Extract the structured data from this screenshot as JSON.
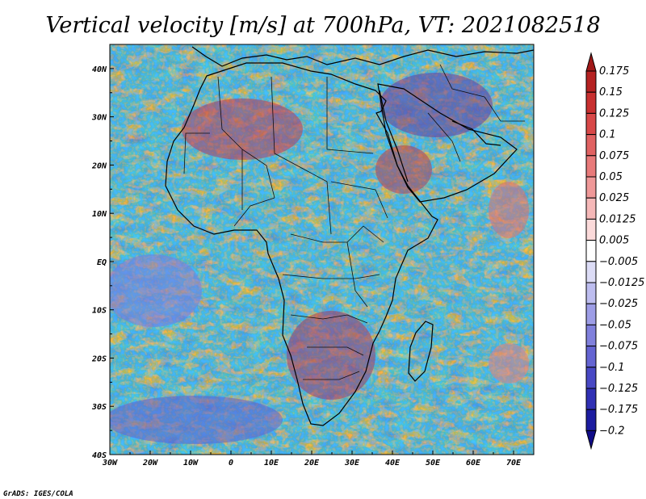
{
  "chart_data": {
    "type": "heatmap",
    "title": "Vertical velocity [m/s] at 700hPa, VT: 2021082518",
    "variable": "Vertical velocity",
    "units": "m/s",
    "level": "700hPa",
    "valid_time": "2021082518",
    "lon_range": [
      -30,
      75
    ],
    "lat_range": [
      -40,
      45
    ],
    "x_ticks": [
      {
        "value": -30,
        "label": "30W"
      },
      {
        "value": -20,
        "label": "20W"
      },
      {
        "value": -10,
        "label": "10W"
      },
      {
        "value": 0,
        "label": "0"
      },
      {
        "value": 10,
        "label": "10E"
      },
      {
        "value": 20,
        "label": "20E"
      },
      {
        "value": 30,
        "label": "30E"
      },
      {
        "value": 40,
        "label": "40E"
      },
      {
        "value": 50,
        "label": "50E"
      },
      {
        "value": 60,
        "label": "60E"
      },
      {
        "value": 70,
        "label": "70E"
      }
    ],
    "y_ticks": [
      {
        "value": 40,
        "label": "40N"
      },
      {
        "value": 30,
        "label": "30N"
      },
      {
        "value": 20,
        "label": "20N"
      },
      {
        "value": 10,
        "label": "10N"
      },
      {
        "value": 0,
        "label": "EQ"
      },
      {
        "value": -10,
        "label": "10S"
      },
      {
        "value": -20,
        "label": "20S"
      },
      {
        "value": -30,
        "label": "30S"
      },
      {
        "value": -40,
        "label": "40S"
      }
    ],
    "colorbar": {
      "labels": [
        "0.175",
        "0.15",
        "0.125",
        "0.1",
        "0.075",
        "0.05",
        "0.025",
        "0.0125",
        "0.005",
        "−0.005",
        "−0.0125",
        "−0.025",
        "−0.05",
        "−0.075",
        "−0.1",
        "−0.125",
        "−0.175",
        "−0.2"
      ],
      "colors": [
        "#a01818",
        "#b52222",
        "#c83030",
        "#d84848",
        "#e06262",
        "#e87a7a",
        "#ef9898",
        "#f5b8b8",
        "#fbdada",
        "#ffffff",
        "#dcdcf6",
        "#bdbdef",
        "#9d9de6",
        "#8080dc",
        "#6464d2",
        "#4848c4",
        "#3030b4",
        "#1c1ca0",
        "#100c88"
      ],
      "extend": "both"
    }
  },
  "credit": "GrADS: IGES/COLA"
}
